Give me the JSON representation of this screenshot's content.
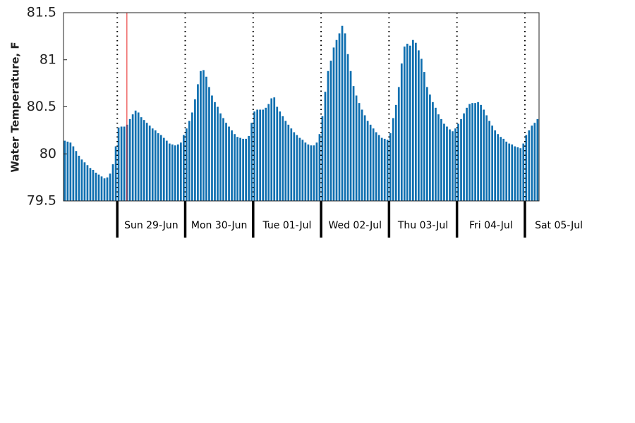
{
  "chart_data": {
    "type": "bar",
    "y_label": "Water Temperature, F",
    "color": "#0f6fb0",
    "ylim": [
      79.5,
      81.5
    ],
    "yticks": [
      79.5,
      80,
      80.5,
      81,
      81.5
    ],
    "xlim": [
      0,
      168
    ],
    "xticks": [
      19,
      43,
      67,
      91,
      115,
      139,
      163
    ],
    "day_labels": [
      "Sun 29-Jun",
      "Mon 30-Jun",
      "Tue 01-Jul",
      "Wed 02-Jul",
      "Thu 03-Jul",
      "Fri 04-Jul",
      "Sat 05-Jul"
    ],
    "now_x": 22.4,
    "now_color": "#e8201f",
    "values": [
      80.14,
      80.13,
      80.12,
      80.08,
      80.03,
      79.98,
      79.94,
      79.91,
      79.88,
      79.85,
      79.83,
      79.8,
      79.78,
      79.76,
      79.74,
      79.75,
      79.79,
      79.89,
      80.08,
      80.28,
      80.29,
      80.29,
      80.31,
      80.37,
      80.42,
      80.46,
      80.44,
      80.39,
      80.36,
      80.33,
      80.3,
      80.27,
      80.25,
      80.22,
      80.2,
      80.17,
      80.14,
      80.11,
      80.1,
      80.09,
      80.1,
      80.12,
      80.2,
      80.27,
      80.35,
      80.44,
      80.58,
      80.74,
      80.88,
      80.89,
      80.82,
      80.71,
      80.62,
      80.55,
      80.5,
      80.43,
      80.38,
      80.33,
      80.29,
      80.25,
      80.21,
      80.18,
      80.17,
      80.16,
      80.16,
      80.19,
      80.33,
      80.45,
      80.47,
      80.47,
      80.47,
      80.49,
      80.53,
      80.59,
      80.6,
      80.5,
      80.45,
      80.4,
      80.35,
      80.31,
      80.27,
      80.23,
      80.2,
      80.17,
      80.15,
      80.12,
      80.1,
      80.09,
      80.09,
      80.12,
      80.21,
      80.4,
      80.66,
      80.88,
      80.99,
      81.13,
      81.21,
      81.28,
      81.36,
      81.28,
      81.06,
      80.88,
      80.72,
      80.62,
      80.54,
      80.47,
      80.41,
      80.35,
      80.31,
      80.27,
      80.23,
      80.2,
      80.17,
      80.16,
      80.15,
      80.22,
      80.38,
      80.52,
      80.71,
      80.96,
      81.14,
      81.17,
      81.15,
      81.21,
      81.18,
      81.1,
      81.01,
      80.87,
      80.71,
      80.63,
      80.55,
      80.49,
      80.42,
      80.37,
      80.32,
      80.29,
      80.26,
      80.24,
      80.27,
      80.32,
      80.37,
      80.43,
      80.49,
      80.53,
      80.54,
      80.54,
      80.55,
      80.52,
      80.47,
      80.41,
      80.35,
      80.3,
      80.25,
      80.21,
      80.18,
      80.16,
      80.13,
      80.11,
      80.1,
      80.08,
      80.07,
      80.06,
      80.11,
      80.2,
      80.25,
      80.3,
      80.33,
      80.37
    ]
  }
}
